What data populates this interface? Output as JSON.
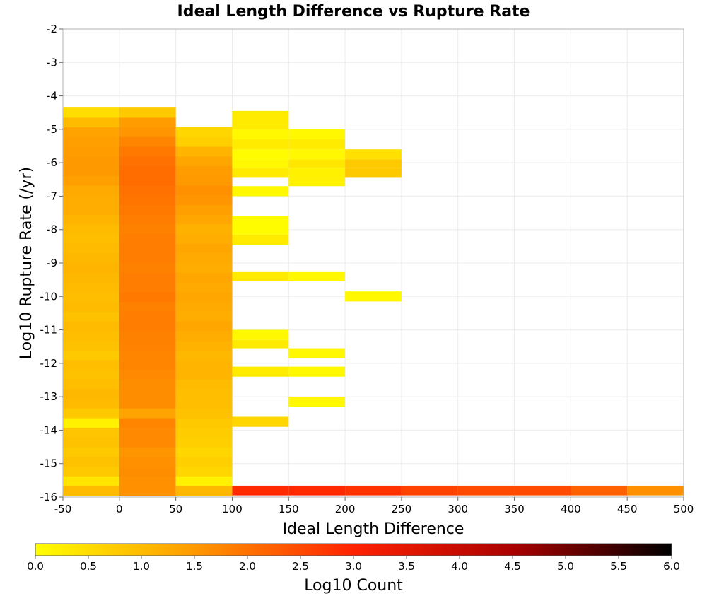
{
  "chart_data": {
    "type": "heatmap",
    "title": "Ideal Length Difference vs Rupture Rate",
    "xlabel": "Ideal Length Difference",
    "ylabel": "Log10 Rupture Rate (/yr)",
    "xlim": [
      -50,
      500
    ],
    "ylim": [
      -16,
      -2
    ],
    "x_ticks": [
      "-50",
      "0",
      "50",
      "100",
      "150",
      "200",
      "250",
      "300",
      "350",
      "400",
      "450",
      "500"
    ],
    "y_ticks": [
      "-2",
      "-3",
      "-4",
      "-5",
      "-6",
      "-7",
      "-8",
      "-9",
      "-10",
      "-11",
      "-12",
      "-13",
      "-14",
      "-15",
      "-16"
    ],
    "grid": true,
    "x_bin_width": 50,
    "y_bin_height": 0.29,
    "colorbar": {
      "label": "Log10 Count",
      "min": 0.0,
      "max": 6.0,
      "ticks": [
        "0.0",
        "0.5",
        "1.0",
        "1.5",
        "2.0",
        "2.5",
        "3.0",
        "3.5",
        "4.0",
        "4.5",
        "5.0",
        "5.5",
        "6.0"
      ],
      "colors": [
        "#ffff00",
        "#ff9900",
        "#ff2200",
        "#aa0000",
        "#000000"
      ]
    },
    "columns": [
      {
        "x0": -50,
        "x1": 0,
        "y0": -15.95,
        "values": [
          1.0,
          0.4,
          0.8,
          0.9,
          0.8,
          0.9,
          0.85,
          0.2,
          0.8,
          1.0,
          1.05,
          0.95,
          0.9,
          0.95,
          0.8,
          0.9,
          0.95,
          1.0,
          0.9,
          1.0,
          0.95,
          1.0,
          1.05,
          1.1,
          1.05,
          1.0,
          0.95,
          1.0,
          1.1,
          1.2,
          1.2,
          1.25,
          1.4,
          1.5,
          1.5,
          1.45,
          1.4,
          1.35,
          1.0,
          0.5
        ]
      },
      {
        "x0": 0,
        "x1": 50,
        "y0": -15.95,
        "values": [
          1.6,
          1.6,
          1.65,
          1.6,
          1.55,
          1.7,
          1.7,
          1.75,
          1.35,
          1.65,
          1.65,
          1.65,
          1.7,
          1.75,
          1.75,
          1.8,
          1.8,
          1.85,
          1.85,
          1.8,
          1.9,
          1.85,
          1.85,
          1.8,
          1.85,
          1.85,
          1.85,
          1.8,
          1.85,
          1.9,
          1.95,
          2.0,
          2.05,
          2.05,
          2.0,
          1.9,
          1.75,
          1.55,
          1.45,
          0.8
        ]
      },
      {
        "x0": 50,
        "x1": 100,
        "y0": -15.95,
        "values": [
          1.05,
          0.2,
          0.6,
          0.7,
          0.6,
          0.7,
          0.75,
          0.8,
          0.9,
          0.95,
          0.95,
          1.0,
          1.1,
          1.1,
          1.05,
          1.15,
          1.2,
          1.3,
          1.2,
          1.25,
          1.3,
          1.25,
          1.3,
          1.2,
          1.25,
          1.3,
          1.2,
          1.15,
          1.3,
          1.4,
          1.55,
          1.6,
          1.5,
          1.45,
          1.3,
          1.1,
          0.7,
          0.6
        ]
      }
    ],
    "cells": [
      {
        "x0": 100,
        "x1": 150,
        "y_low": -15.95,
        "y_high": -15.66,
        "value": 2.9
      },
      {
        "x0": 150,
        "x1": 200,
        "y_low": -15.95,
        "y_high": -15.66,
        "value": 2.9
      },
      {
        "x0": 200,
        "x1": 250,
        "y_low": -15.95,
        "y_high": -15.66,
        "value": 2.8
      },
      {
        "x0": 250,
        "x1": 300,
        "y_low": -15.95,
        "y_high": -15.66,
        "value": 2.6
      },
      {
        "x0": 300,
        "x1": 350,
        "y_low": -15.95,
        "y_high": -15.66,
        "value": 2.5
      },
      {
        "x0": 350,
        "x1": 400,
        "y_low": -15.95,
        "y_high": -15.66,
        "value": 2.5
      },
      {
        "x0": 400,
        "x1": 450,
        "y_low": -15.95,
        "y_high": -15.66,
        "value": 2.2
      },
      {
        "x0": 450,
        "x1": 500,
        "y_low": -15.95,
        "y_high": -15.66,
        "value": 1.6
      },
      {
        "x0": 100,
        "x1": 150,
        "y_low": -13.9,
        "y_high": -13.6,
        "value": 0.6
      },
      {
        "x0": 150,
        "x1": 200,
        "y_low": -13.3,
        "y_high": -13.0,
        "value": 0.1
      },
      {
        "x0": 100,
        "x1": 150,
        "y_low": -12.4,
        "y_high": -12.1,
        "value": 0.3
      },
      {
        "x0": 150,
        "x1": 200,
        "y_low": -12.4,
        "y_high": -12.1,
        "value": 0.1
      },
      {
        "x0": 150,
        "x1": 200,
        "y_low": -11.85,
        "y_high": -11.55,
        "value": 0.1
      },
      {
        "x0": 100,
        "x1": 150,
        "y_low": -11.55,
        "y_high": -11.3,
        "value": 0.3
      },
      {
        "x0": 100,
        "x1": 150,
        "y_low": -11.3,
        "y_high": -11.0,
        "value": 0.1
      },
      {
        "x0": 200,
        "x1": 250,
        "y_low": -10.15,
        "y_high": -9.85,
        "value": 0.1
      },
      {
        "x0": 100,
        "x1": 150,
        "y_low": -9.55,
        "y_high": -9.25,
        "value": 0.3
      },
      {
        "x0": 150,
        "x1": 200,
        "y_low": -9.55,
        "y_high": -9.25,
        "value": 0.1
      },
      {
        "x0": 100,
        "x1": 150,
        "y_low": -8.45,
        "y_high": -8.15,
        "value": 0.3
      },
      {
        "x0": 100,
        "x1": 150,
        "y_low": -8.15,
        "y_high": -7.6,
        "value": 0.05
      },
      {
        "x0": 100,
        "x1": 150,
        "y_low": -7.0,
        "y_high": -6.7,
        "value": 0.1
      },
      {
        "x0": 150,
        "x1": 200,
        "y_low": -6.7,
        "y_high": -6.45,
        "value": 0.2
      },
      {
        "x0": 100,
        "x1": 150,
        "y_low": -6.45,
        "y_high": -6.15,
        "value": 0.3
      },
      {
        "x0": 150,
        "x1": 200,
        "y_low": -6.45,
        "y_high": -6.15,
        "value": 0.2
      },
      {
        "x0": 200,
        "x1": 250,
        "y_low": -6.45,
        "y_high": -6.15,
        "value": 0.8
      },
      {
        "x0": 100,
        "x1": 150,
        "y_low": -6.15,
        "y_high": -5.9,
        "value": 0.1
      },
      {
        "x0": 150,
        "x1": 200,
        "y_low": -6.15,
        "y_high": -5.9,
        "value": 0.35
      },
      {
        "x0": 200,
        "x1": 250,
        "y_low": -6.15,
        "y_high": -5.9,
        "value": 0.8
      },
      {
        "x0": 100,
        "x1": 150,
        "y_low": -5.9,
        "y_high": -5.6,
        "value": 0.05
      },
      {
        "x0": 150,
        "x1": 200,
        "y_low": -5.9,
        "y_high": -5.6,
        "value": 0.1
      },
      {
        "x0": 200,
        "x1": 250,
        "y_low": -5.9,
        "y_high": -5.6,
        "value": 0.45
      },
      {
        "x0": 100,
        "x1": 150,
        "y_low": -5.6,
        "y_high": -5.3,
        "value": 0.3
      },
      {
        "x0": 150,
        "x1": 200,
        "y_low": -5.6,
        "y_high": -5.3,
        "value": 0.3
      },
      {
        "x0": 100,
        "x1": 150,
        "y_low": -5.3,
        "y_high": -5.0,
        "value": 0.1
      },
      {
        "x0": 150,
        "x1": 200,
        "y_low": -5.3,
        "y_high": -5.0,
        "value": 0.1
      },
      {
        "x0": 100,
        "x1": 150,
        "y_low": -5.0,
        "y_high": -4.45,
        "value": 0.3
      }
    ]
  }
}
